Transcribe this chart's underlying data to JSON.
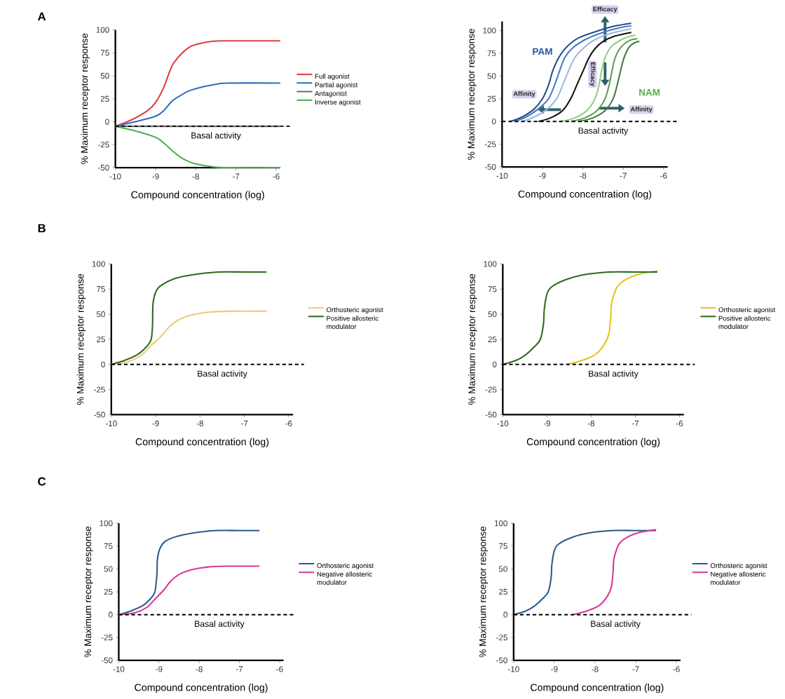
{
  "chart_data": [
    {
      "type": "line",
      "title": "A",
      "xlabel": "Compound concentration (log)",
      "ylabel": "% Maximum receptor response",
      "xlim": [
        -10,
        -5.9
      ],
      "ylim": [
        -50,
        100
      ],
      "xticks": [
        -10,
        -9,
        -8,
        -7,
        -6
      ],
      "yticks": [
        -50,
        -25,
        0,
        25,
        50,
        75,
        100
      ],
      "legend": "right",
      "ref_lines": [
        {
          "axis": "y",
          "value": -5,
          "label": "Basal activity",
          "line_style": "dashed"
        }
      ],
      "series": [
        {
          "name": "Full agonist",
          "color": "#d9413f",
          "x": [
            -10,
            -9.6,
            -9.2,
            -9,
            -8.8,
            -8.6,
            -8.4,
            -8.2,
            -8,
            -7.6,
            -7.2,
            -5.9
          ],
          "values": [
            -5,
            2,
            12,
            21,
            37,
            60,
            72,
            80,
            84,
            87.5,
            88,
            88
          ]
        },
        {
          "name": "Partial agonist",
          "color": "#2f6cc0",
          "x": [
            -10,
            -9.5,
            -9,
            -8.8,
            -8.6,
            -8.4,
            -8.2,
            -8,
            -7.6,
            -7.2,
            -5.9
          ],
          "values": [
            -5,
            0,
            6,
            12,
            22,
            28,
            33,
            36,
            40,
            42,
            42
          ]
        },
        {
          "name": "Antagonist",
          "color": "#707070",
          "x": [
            -10,
            -5.9
          ],
          "values": [
            -5,
            -5
          ]
        },
        {
          "name": "Inverse agonist",
          "color": "#4caf50",
          "x": [
            -10,
            -9.5,
            -9,
            -8.8,
            -8.6,
            -8.4,
            -8.2,
            -8,
            -7.6,
            -7.2,
            -5.9
          ],
          "values": [
            -5,
            -10,
            -17,
            -23,
            -31,
            -38,
            -43,
            -46,
            -49,
            -50,
            -50
          ]
        }
      ]
    },
    {
      "type": "line",
      "xlabel": "Compound concentration (log)",
      "ylabel": "% Maximum receptor response",
      "xlim": [
        -10,
        -5.9
      ],
      "ylim": [
        -50,
        110
      ],
      "xticks": [
        -10,
        -9,
        -8,
        -7,
        -6
      ],
      "yticks": [
        -50,
        -25,
        0,
        25,
        50,
        75,
        100
      ],
      "ref_lines": [
        {
          "axis": "y",
          "value": 0,
          "label": "Basal activity",
          "line_style": "dashed"
        }
      ],
      "annotations": [
        "PAM",
        "NAM",
        "Efficacy",
        "Efficacy",
        "Affinity",
        "Affinity"
      ],
      "series": [
        {
          "color": "#1f4e8c",
          "x": [
            -9.8,
            -9.5,
            -9.2,
            -9.0,
            -8.85,
            -8.75,
            -8.6,
            -8.4,
            -8.1,
            -7.6,
            -7.2,
            -6.8
          ],
          "values": [
            0,
            5,
            14,
            25,
            40,
            55,
            70,
            82,
            92,
            100,
            105,
            108
          ]
        },
        {
          "color": "#4a78c0",
          "x": [
            -9.7,
            -9.4,
            -9.1,
            -8.85,
            -8.7,
            -8.58,
            -8.45,
            -8.25,
            -7.9,
            -7.5,
            -7.1,
            -6.8
          ],
          "values": [
            0,
            5,
            14,
            25,
            40,
            55,
            70,
            81,
            91,
            98,
            103,
            105
          ]
        },
        {
          "color": "#9fb6e0",
          "x": [
            -9.5,
            -9.2,
            -8.9,
            -8.65,
            -8.5,
            -8.36,
            -8.2,
            -8.0,
            -7.7,
            -7.3,
            -6.8
          ],
          "values": [
            0,
            5,
            13,
            25,
            40,
            55,
            70,
            80,
            90,
            97,
            102
          ]
        },
        {
          "color": "#111111",
          "x": [
            -9.1,
            -8.8,
            -8.5,
            -8.3,
            -8.15,
            -8.0,
            -7.85,
            -7.7,
            -7.5,
            -7.2,
            -6.8
          ],
          "values": [
            0,
            4,
            12,
            25,
            40,
            55,
            70,
            80,
            88,
            94,
            98
          ]
        },
        {
          "color": "#8fcf7a",
          "x": [
            -8.55,
            -8.2,
            -7.9,
            -7.7,
            -7.6,
            -7.54,
            -7.45,
            -7.3,
            -7.0,
            -6.7
          ],
          "values": [
            0,
            4,
            12,
            25,
            40,
            55,
            70,
            82,
            91,
            95
          ]
        },
        {
          "color": "#5aa050",
          "x": [
            -8.3,
            -7.95,
            -7.65,
            -7.45,
            -7.35,
            -7.28,
            -7.2,
            -7.05,
            -6.85,
            -6.65
          ],
          "values": [
            0,
            4,
            12,
            25,
            40,
            55,
            70,
            82,
            89,
            91
          ]
        },
        {
          "color": "#3e7d3e",
          "x": [
            -8.1,
            -7.75,
            -7.45,
            -7.25,
            -7.15,
            -7.07,
            -6.98,
            -6.85,
            -6.7,
            -6.6
          ],
          "values": [
            0,
            4,
            12,
            25,
            40,
            55,
            70,
            82,
            87,
            88
          ]
        }
      ]
    },
    {
      "type": "line",
      "title": "B",
      "xlabel": "Compound concentration (log)",
      "ylabel": "% Maximum receptor response",
      "xlim": [
        -10,
        -5.9
      ],
      "ylim": [
        -50,
        100
      ],
      "xticks": [
        -10,
        -9,
        -8,
        -7,
        -6
      ],
      "yticks": [
        -50,
        -25,
        0,
        25,
        50,
        75,
        100
      ],
      "legend": "right",
      "ref_lines": [
        {
          "axis": "y",
          "value": 0,
          "label": "Basal activity",
          "line_style": "dashed"
        }
      ],
      "series": [
        {
          "name": "Orthosteric agonist",
          "color": "#f2c97a",
          "x": [
            -10,
            -9.6,
            -9.3,
            -9.1,
            -8.9,
            -8.7,
            -8.5,
            -8.2,
            -7.8,
            -7.3,
            -6.5
          ],
          "values": [
            0,
            3,
            10,
            19,
            27,
            37,
            44,
            49,
            52,
            53,
            53
          ]
        },
        {
          "name": "Positive allosteric modulator",
          "color": "#2e6b1e",
          "x": [
            -10,
            -9.7,
            -9.4,
            -9.2,
            -9.1,
            -9.07,
            -9.06,
            -9.0,
            -8.9,
            -8.6,
            -8.2,
            -7.6,
            -7,
            -6.5
          ],
          "values": [
            0,
            4,
            10,
            18,
            25,
            40,
            60,
            72,
            78,
            85,
            89,
            92,
            92,
            92
          ]
        }
      ]
    },
    {
      "type": "line",
      "xlabel": "Compound concentration (log)",
      "ylabel": "% Maximum receptor response",
      "xlim": [
        -10,
        -5.9
      ],
      "ylim": [
        -50,
        100
      ],
      "xticks": [
        -10,
        -9,
        -8,
        -7,
        -6
      ],
      "yticks": [
        -50,
        -25,
        0,
        25,
        50,
        75,
        100
      ],
      "legend": "right",
      "ref_lines": [
        {
          "axis": "y",
          "value": 0,
          "label": "Basal activity",
          "line_style": "dashed"
        }
      ],
      "series": [
        {
          "name": "Orthosteric agonist",
          "color": "#e8c21c",
          "x": [
            -8.55,
            -8.2,
            -7.9,
            -7.7,
            -7.6,
            -7.56,
            -7.54,
            -7.48,
            -7.4,
            -7.2,
            -6.9,
            -6.5
          ],
          "values": [
            0,
            4,
            10,
            20,
            30,
            45,
            60,
            70,
            78,
            85,
            90,
            93
          ]
        },
        {
          "name": "Positive allosteric modulator",
          "color": "#2e6b1e",
          "x": [
            -10,
            -9.7,
            -9.5,
            -9.3,
            -9.15,
            -9.08,
            -9.06,
            -9.0,
            -8.9,
            -8.6,
            -8.2,
            -7.6,
            -7,
            -6.5
          ],
          "values": [
            0,
            4,
            9,
            17,
            25,
            40,
            55,
            70,
            77,
            84,
            89,
            92,
            92,
            92
          ]
        }
      ]
    },
    {
      "type": "line",
      "title": "C",
      "xlabel": "Compound concentration (log)",
      "ylabel": "% Maximum receptor response",
      "xlim": [
        -10,
        -5.9
      ],
      "ylim": [
        -50,
        100
      ],
      "xticks": [
        -10,
        -9,
        -8,
        -7,
        -6
      ],
      "yticks": [
        -50,
        -25,
        0,
        25,
        50,
        75,
        100
      ],
      "legend": "right",
      "ref_lines": [
        {
          "axis": "y",
          "value": 0,
          "label": "Basal activity",
          "line_style": "dashed"
        }
      ],
      "series": [
        {
          "name": "Orthosteric agonist",
          "color": "#2b5c8c",
          "x": [
            -10,
            -9.7,
            -9.4,
            -9.2,
            -9.1,
            -9.05,
            -9.04,
            -8.98,
            -8.85,
            -8.6,
            -8.2,
            -7.6,
            -7,
            -6.5
          ],
          "values": [
            0,
            4,
            10,
            18,
            25,
            45,
            60,
            72,
            80,
            85,
            89,
            92,
            92,
            92
          ]
        },
        {
          "name": "Negative allosteric modulator",
          "color": "#d6379a",
          "x": [
            -10,
            -9.6,
            -9.3,
            -9.1,
            -8.9,
            -8.7,
            -8.5,
            -8.2,
            -7.8,
            -7.3,
            -6.5
          ],
          "values": [
            0,
            2,
            8,
            17,
            26,
            37,
            44,
            49,
            52,
            53,
            53
          ]
        }
      ]
    },
    {
      "type": "line",
      "xlabel": "Compound concentration (log)",
      "ylabel": "% Maximum receptor response",
      "xlim": [
        -10,
        -5.9
      ],
      "ylim": [
        -50,
        100
      ],
      "xticks": [
        -10,
        -9,
        -8,
        -7,
        -6
      ],
      "yticks": [
        -50,
        -25,
        0,
        25,
        50,
        75,
        100
      ],
      "legend": "right",
      "ref_lines": [
        {
          "axis": "y",
          "value": 0,
          "label": "Basal activity",
          "line_style": "dashed"
        }
      ],
      "series": [
        {
          "name": "Orthosteric agonist",
          "color": "#2b5c8c",
          "x": [
            -10,
            -9.7,
            -9.5,
            -9.3,
            -9.15,
            -9.08,
            -9.06,
            -9.0,
            -8.9,
            -8.6,
            -8.2,
            -7.6,
            -7,
            -6.5
          ],
          "values": [
            0,
            4,
            9,
            17,
            25,
            40,
            55,
            70,
            77,
            84,
            89,
            92,
            92,
            92
          ]
        },
        {
          "name": "Negative allosteric modulator",
          "color": "#d6379a",
          "x": [
            -8.55,
            -8.2,
            -7.9,
            -7.7,
            -7.6,
            -7.56,
            -7.54,
            -7.48,
            -7.4,
            -7.2,
            -6.9,
            -6.5
          ],
          "values": [
            0,
            4,
            10,
            20,
            30,
            45,
            60,
            70,
            78,
            85,
            90,
            93
          ]
        }
      ]
    }
  ]
}
